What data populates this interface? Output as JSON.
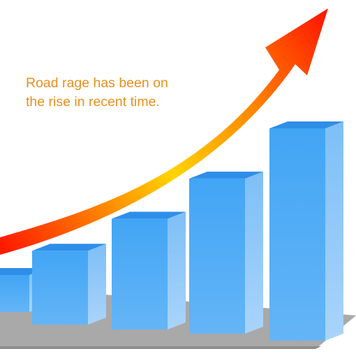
{
  "caption": {
    "line1": "Road rage has been on",
    "line2": "the rise in recent time."
  },
  "chart_data": {
    "type": "bar",
    "title": "",
    "xlabel": "",
    "ylabel": "",
    "categories": [
      "",
      "",
      "",
      "",
      ""
    ],
    "values": [
      1.2,
      2.3,
      3.4,
      4.7,
      6.3
    ],
    "trend": "increasing",
    "colors": {
      "bar_front_top": "#42a5f5",
      "bar_front_bottom": "#64b5f6",
      "bar_side": "#90caf9",
      "bar_top": "#2f8ee8",
      "floor": "#a9a9a9",
      "arrow_start": "#ff1a00",
      "arrow_mid": "#ffd400",
      "arrow_tip": "#ff1500",
      "caption": "#e8901c"
    },
    "arrow_icon": "trend-up-arrow-icon"
  }
}
